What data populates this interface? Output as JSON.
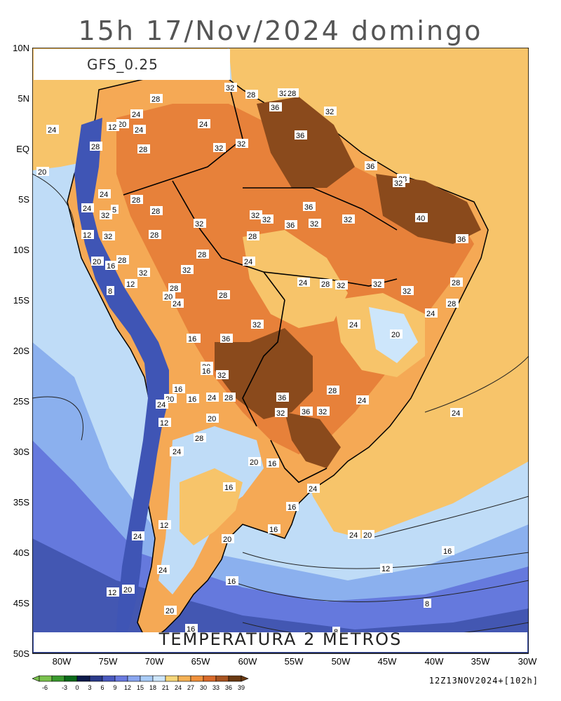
{
  "title": "15h 17/Nov/2024 domingo",
  "model_label": "GFS_0.25",
  "variable_label": "TEMPERATURA 2 METROS",
  "run_label": "12Z13NOV2024+[102h]",
  "lat_labels": [
    "10N",
    "5N",
    "EQ",
    "5S",
    "10S",
    "15S",
    "20S",
    "25S",
    "30S",
    "35S",
    "40S",
    "45S",
    "50S"
  ],
  "lon_labels": [
    "80W",
    "75W",
    "70W",
    "65W",
    "60W",
    "55W",
    "50W",
    "45W",
    "40W",
    "35W",
    "30W"
  ],
  "colorbar": {
    "values": [
      "-6",
      "-3",
      "0",
      "3",
      "6",
      "9",
      "12",
      "15",
      "18",
      "21",
      "24",
      "27",
      "30",
      "33",
      "36",
      "39"
    ],
    "colors": [
      "#7ac24e",
      "#3a9a2e",
      "#0a6a1a",
      "#0c1a4a",
      "#2a3a8a",
      "#4a5abf",
      "#6a7ae0",
      "#8aa6f0",
      "#a9ccf7",
      "#cde6fb",
      "#f6d77a",
      "#f5b256",
      "#f0913c",
      "#d96a2a",
      "#a85420",
      "#6a3a12"
    ]
  },
  "map_colors": {
    "ocean_warm": "#f7c46a",
    "ocean_mid": "#bfdcf7",
    "ocean_cool": "#8bb0ee",
    "ocean_cold": "#6579dd",
    "ocean_coldest": "#4357b2",
    "land_hot": "#e7813a",
    "land_very_hot": "#8a4a1c",
    "land_warm": "#f5a955",
    "andes": "#3f55b5"
  },
  "contour_labels": [
    {
      "t": "32"
    },
    {
      "t": "28"
    },
    {
      "t": "32"
    },
    {
      "t": "28"
    },
    {
      "t": "36"
    },
    {
      "t": "32"
    },
    {
      "t": "28"
    },
    {
      "t": "24"
    },
    {
      "t": "24"
    },
    {
      "t": "20"
    },
    {
      "t": "12"
    },
    {
      "t": "24"
    },
    {
      "t": "24"
    },
    {
      "t": "28"
    },
    {
      "t": "32"
    },
    {
      "t": "28"
    },
    {
      "t": "32"
    },
    {
      "t": "36"
    },
    {
      "t": "20"
    },
    {
      "t": "36"
    },
    {
      "t": "28"
    },
    {
      "t": "32"
    },
    {
      "t": "24"
    },
    {
      "t": "32"
    },
    {
      "t": "28"
    },
    {
      "t": "28"
    },
    {
      "t": "36"
    },
    {
      "t": "5"
    },
    {
      "t": "28"
    },
    {
      "t": "24"
    },
    {
      "t": "32"
    },
    {
      "t": "32"
    },
    {
      "t": "36"
    },
    {
      "t": "32"
    },
    {
      "t": "32"
    },
    {
      "t": "32"
    },
    {
      "t": "40"
    },
    {
      "t": "12"
    },
    {
      "t": "32"
    },
    {
      "t": "28"
    },
    {
      "t": "36"
    },
    {
      "t": "20"
    },
    {
      "t": "28"
    },
    {
      "t": "24"
    },
    {
      "t": "16"
    },
    {
      "t": "28"
    },
    {
      "t": "32"
    },
    {
      "t": "32"
    },
    {
      "t": "28"
    },
    {
      "t": "24"
    },
    {
      "t": "32"
    },
    {
      "t": "28"
    },
    {
      "t": "32"
    },
    {
      "t": "28"
    },
    {
      "t": "32"
    },
    {
      "t": "8"
    },
    {
      "t": "12"
    },
    {
      "t": "20"
    },
    {
      "t": "24"
    },
    {
      "t": "28"
    },
    {
      "t": "24"
    },
    {
      "t": "28"
    },
    {
      "t": "16"
    },
    {
      "t": "24"
    },
    {
      "t": "32"
    },
    {
      "t": "20"
    },
    {
      "t": "36"
    },
    {
      "t": "16"
    },
    {
      "t": "20"
    },
    {
      "t": "16"
    },
    {
      "t": "32"
    },
    {
      "t": "16"
    },
    {
      "t": "24"
    },
    {
      "t": "28"
    },
    {
      "t": "20"
    },
    {
      "t": "16"
    },
    {
      "t": "24"
    },
    {
      "t": "20"
    },
    {
      "t": "28"
    },
    {
      "t": "36"
    },
    {
      "t": "24"
    },
    {
      "t": "12"
    },
    {
      "t": "32"
    },
    {
      "t": "36"
    },
    {
      "t": "32"
    },
    {
      "t": "24"
    },
    {
      "t": "20"
    },
    {
      "t": "28"
    },
    {
      "t": "24"
    },
    {
      "t": "16"
    },
    {
      "t": "20"
    },
    {
      "t": "16"
    },
    {
      "t": "24"
    },
    {
      "t": "20"
    },
    {
      "t": "12"
    },
    {
      "t": "16"
    },
    {
      "t": "16"
    },
    {
      "t": "24"
    },
    {
      "t": "20"
    },
    {
      "t": "20"
    },
    {
      "t": "16"
    },
    {
      "t": "12"
    },
    {
      "t": "12"
    },
    {
      "t": "20"
    },
    {
      "t": "20"
    },
    {
      "t": "16"
    },
    {
      "t": "8"
    },
    {
      "t": "8"
    },
    {
      "t": "8"
    },
    {
      "t": "24"
    },
    {
      "t": "24"
    },
    {
      "t": "16"
    }
  ]
}
